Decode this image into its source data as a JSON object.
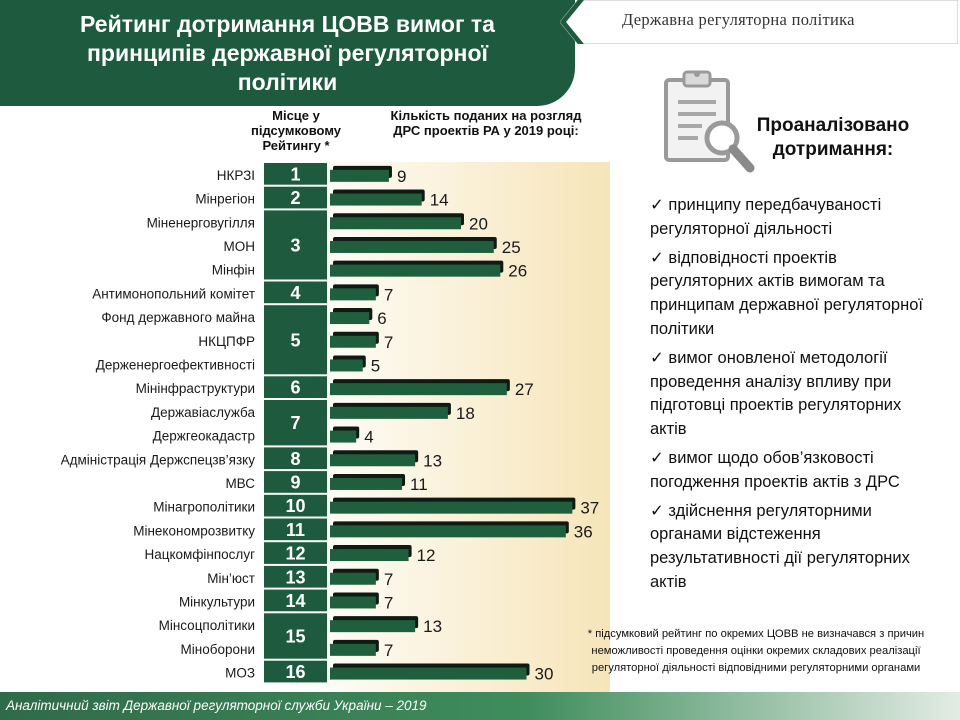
{
  "header": {
    "title": "Рейтинг дотримання ЦОВВ вимог та принципів державної регуляторної політики",
    "section": "Державна регуляторна політика"
  },
  "columns": {
    "rank_header": "Місце у підсумковому Рейтингу *",
    "count_header": "Кількість поданих на розгляд ДРС проектів РА у 2019 році:"
  },
  "colors": {
    "primary_green": "#1e5b3e",
    "bar_green": "#1f5f3e",
    "bar_shadow": "#0e1a12",
    "chart_bg_end": "#f6e5b9"
  },
  "chart_data": {
    "type": "bar",
    "orientation": "horizontal",
    "categories": [
      "НКРЗІ",
      "Мінрегіон",
      "Міненерговугілля",
      "МОН",
      "Мінфін",
      "Антимонопольний комітет",
      "Фонд державного майна",
      "НКЦПФР",
      "Держенергоефективності",
      "Мінінфраструктури",
      "Державіаслужба",
      "Держгеокадастр",
      "Адміністрація Держспецзв’язку",
      "МВС",
      "Мінагрополітики",
      "Мінекономрозвитку",
      "Нацкомфінпослуг",
      "Мін’юст",
      "Мінкультури",
      "Мінсоцполітики",
      "Міноборони",
      "МОЗ"
    ],
    "values": [
      9,
      14,
      20,
      25,
      26,
      7,
      6,
      7,
      5,
      27,
      18,
      4,
      13,
      11,
      37,
      36,
      12,
      7,
      7,
      13,
      7,
      30
    ],
    "rank_groups": [
      {
        "rank": "1",
        "members": 1
      },
      {
        "rank": "2",
        "members": 1
      },
      {
        "rank": "3",
        "members": 3
      },
      {
        "rank": "4",
        "members": 1
      },
      {
        "rank": "5",
        "members": 3
      },
      {
        "rank": "6",
        "members": 1
      },
      {
        "rank": "7",
        "members": 2
      },
      {
        "rank": "8",
        "members": 1
      },
      {
        "rank": "9",
        "members": 1
      },
      {
        "rank": "10",
        "members": 1
      },
      {
        "rank": "11",
        "members": 1
      },
      {
        "rank": "12",
        "members": 1
      },
      {
        "rank": "13",
        "members": 1
      },
      {
        "rank": "14",
        "members": 1
      },
      {
        "rank": "15",
        "members": 2
      },
      {
        "rank": "16",
        "members": 1
      }
    ],
    "xlim": [
      0,
      40
    ],
    "grid": false,
    "legend": "none"
  },
  "analysis": {
    "heading": "Проаналізовано дотримання:",
    "check_icon": "check-mark",
    "items": [
      "принципу передбачуваності регуляторної діяльності",
      "відповідності проектів регуляторних актів вимогам та принципам державної регуляторної політики",
      "вимог оновленої методології проведення аналізу впливу при підготовці проектів регуляторних актів",
      "вимог щодо обов’язковості погодження проектів актів з ДРС",
      "здійснення регуляторними органами відстеження результативності дії регуляторних актів"
    ]
  },
  "footnote": "* підсумковий рейтинг по окремих ЦОВВ не визначався з причин неможливості проведення оцінки окремих складових реалізації регуляторної діяльності відповідними регуляторними органами",
  "footer": "Аналітичний звіт Державної регуляторної служби України – 2019"
}
